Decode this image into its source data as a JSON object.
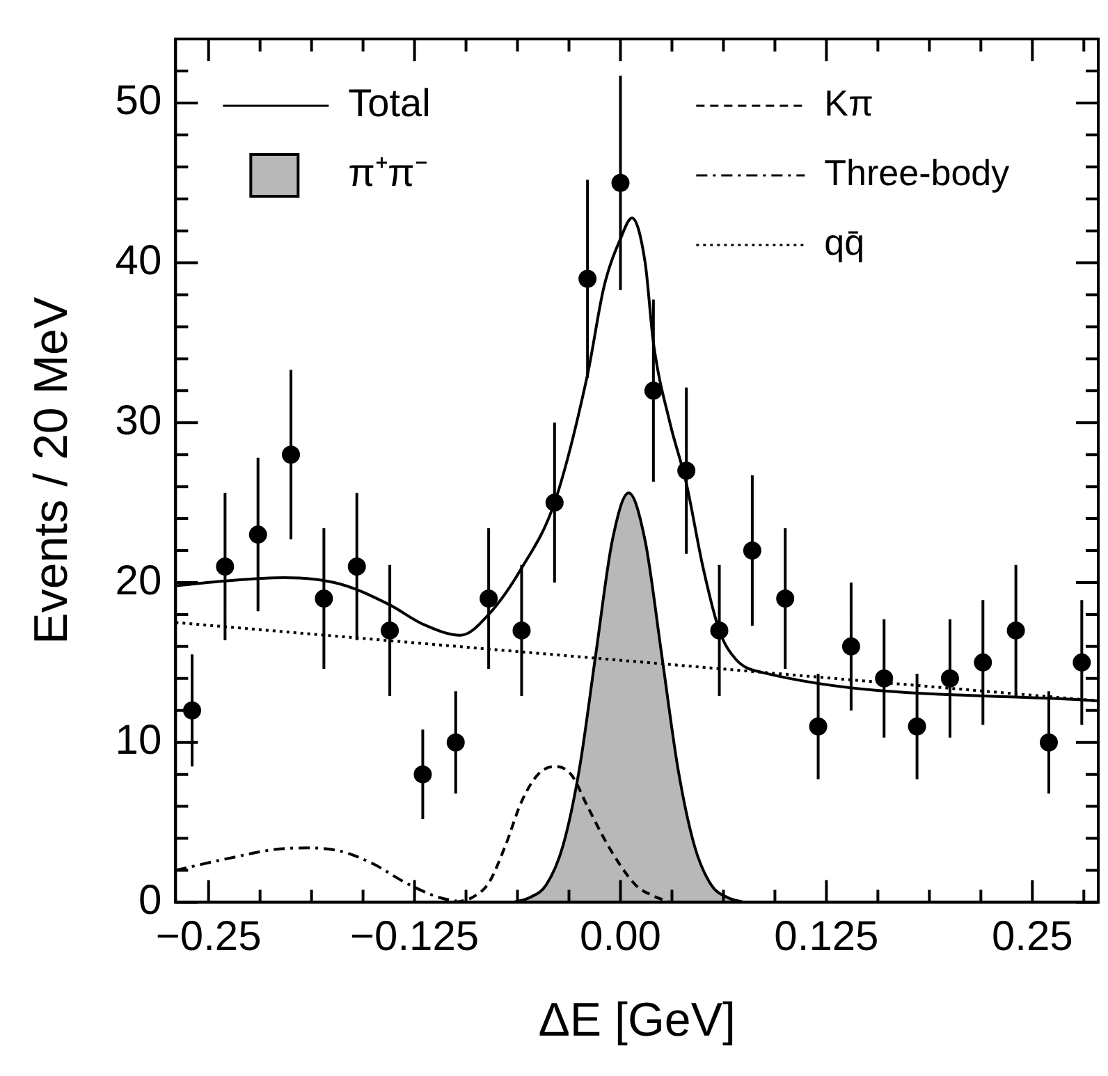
{
  "chart_data": {
    "type": "scatter",
    "xlabel": "ΔE [GeV]",
    "ylabel": "Events / 20 MeV",
    "xlim": [
      -0.27,
      0.29
    ],
    "ylim": [
      0,
      54
    ],
    "xticks": [
      {
        "value": -0.25,
        "label": "−0.25"
      },
      {
        "value": -0.21875,
        "label": null
      },
      {
        "value": -0.1875,
        "label": null
      },
      {
        "value": -0.15625,
        "label": null
      },
      {
        "value": -0.125,
        "label": "−0.125"
      },
      {
        "value": -0.09375,
        "label": null
      },
      {
        "value": -0.0625,
        "label": null
      },
      {
        "value": -0.03125,
        "label": null
      },
      {
        "value": 0,
        "label": "0.00"
      },
      {
        "value": 0.03125,
        "label": null
      },
      {
        "value": 0.0625,
        "label": null
      },
      {
        "value": 0.09375,
        "label": null
      },
      {
        "value": 0.125,
        "label": "0.125"
      },
      {
        "value": 0.15625,
        "label": null
      },
      {
        "value": 0.1875,
        "label": null
      },
      {
        "value": 0.21875,
        "label": null
      },
      {
        "value": 0.25,
        "label": "0.25"
      },
      {
        "value": 0.28125,
        "label": null
      }
    ],
    "yticks": [
      0,
      {
        "value": 2,
        "label": null
      },
      {
        "value": 4,
        "label": null
      },
      {
        "value": 6,
        "label": null
      },
      {
        "value": 8,
        "label": null
      },
      10,
      {
        "value": 12,
        "label": null
      },
      {
        "value": 14,
        "label": null
      },
      {
        "value": 16,
        "label": null
      },
      {
        "value": 18,
        "label": null
      },
      20,
      {
        "value": 22,
        "label": null
      },
      {
        "value": 24,
        "label": null
      },
      {
        "value": 26,
        "label": null
      },
      {
        "value": 28,
        "label": null
      },
      30,
      {
        "value": 32,
        "label": null
      },
      {
        "value": 34,
        "label": null
      },
      {
        "value": 36,
        "label": null
      },
      {
        "value": 38,
        "label": null
      },
      40,
      {
        "value": 42,
        "label": null
      },
      {
        "value": 44,
        "label": null
      },
      {
        "value": 46,
        "label": null
      },
      {
        "value": 48,
        "label": null
      },
      50,
      {
        "value": 52,
        "label": null
      }
    ],
    "grid": false,
    "legend": "top",
    "series": [
      {
        "type": "line",
        "name": "Total",
        "color": "#000000",
        "line_style": "solid",
        "marker": "none",
        "x": [
          -0.27,
          -0.24,
          -0.204,
          -0.17,
          -0.14,
          -0.12,
          -0.097,
          -0.08,
          -0.06,
          -0.04,
          -0.02,
          -0.01,
          0,
          0.007,
          0.015,
          0.02,
          0.03,
          0.04,
          0.05,
          0.06,
          0.07,
          0.085,
          0.29
        ],
        "values": [
          19.8,
          20.1,
          20.3,
          19.9,
          18.6,
          17.4,
          16.7,
          18,
          20.9,
          25,
          33,
          38.5,
          41.5,
          42.8,
          40,
          35,
          30,
          26.2,
          21,
          17,
          15.2,
          14.4,
          12.6
        ]
      },
      {
        "type": "area",
        "name": "π⁺π⁻",
        "color": "#000000",
        "x": [
          -0.065,
          -0.055,
          -0.045,
          -0.035,
          -0.025,
          -0.015,
          -0.005,
          0.005,
          0.015,
          0.025,
          0.035,
          0.045,
          0.055,
          0.065,
          0.075
        ],
        "values": [
          0,
          0.3,
          1.1,
          3.5,
          8.3,
          15.5,
          22.6,
          25.6,
          22.6,
          15.5,
          8.3,
          3.5,
          1.1,
          0.3,
          0
        ]
      },
      {
        "type": "line",
        "name": "Kπ",
        "color": "#000000",
        "line_style": "dashed",
        "marker": "none",
        "x": [
          -0.1,
          -0.09,
          -0.08,
          -0.07,
          -0.06,
          -0.05,
          -0.04,
          -0.03,
          -0.02,
          -0.01,
          0,
          0.01,
          0.02,
          0.03
        ],
        "values": [
          0,
          0.3,
          1.2,
          3.5,
          6.3,
          8,
          8.5,
          8,
          6,
          4,
          2.3,
          1,
          0.4,
          0
        ]
      },
      {
        "type": "line",
        "name": "Three-body",
        "color": "#000000",
        "line_style": "dashdot",
        "marker": "none",
        "x": [
          -0.27,
          -0.24,
          -0.21,
          -0.19,
          -0.17,
          -0.15,
          -0.13,
          -0.11,
          -0.095
        ],
        "values": [
          2,
          2.7,
          3.3,
          3.4,
          3.2,
          2.4,
          1.2,
          0.3,
          0
        ]
      },
      {
        "type": "line",
        "name": "qq̄",
        "color": "#000000",
        "line_style": "dotted",
        "marker": "none",
        "x": [
          -0.27,
          0.29
        ],
        "values": [
          17.5,
          12.6
        ]
      },
      {
        "color": "#000000",
        "marker": "circle",
        "x": [
          -0.26,
          -0.24,
          -0.22,
          -0.2,
          -0.18,
          -0.16,
          -0.14,
          -0.12,
          -0.1,
          -0.08,
          -0.06,
          -0.04,
          -0.02,
          0,
          0.02,
          0.04,
          0.06,
          0.08,
          0.1,
          0.12,
          0.14,
          0.16,
          0.18,
          0.2,
          0.22,
          0.24,
          0.26,
          0.28
        ],
        "values": [
          12,
          21,
          23,
          28,
          19,
          21,
          17,
          8,
          10,
          19,
          17,
          25,
          39,
          45,
          32,
          27,
          17,
          22,
          19,
          11,
          16,
          14,
          11,
          14,
          15,
          17,
          10,
          15
        ],
        "errors": [
          3.5,
          4.6,
          4.8,
          5.3,
          4.4,
          4.6,
          4.1,
          2.8,
          3.2,
          4.4,
          4.1,
          5,
          6.2,
          6.7,
          5.7,
          5.2,
          4.1,
          4.7,
          4.4,
          3.3,
          4,
          3.7,
          3.3,
          3.7,
          3.9,
          4.1,
          3.2,
          3.9
        ]
      }
    ]
  }
}
